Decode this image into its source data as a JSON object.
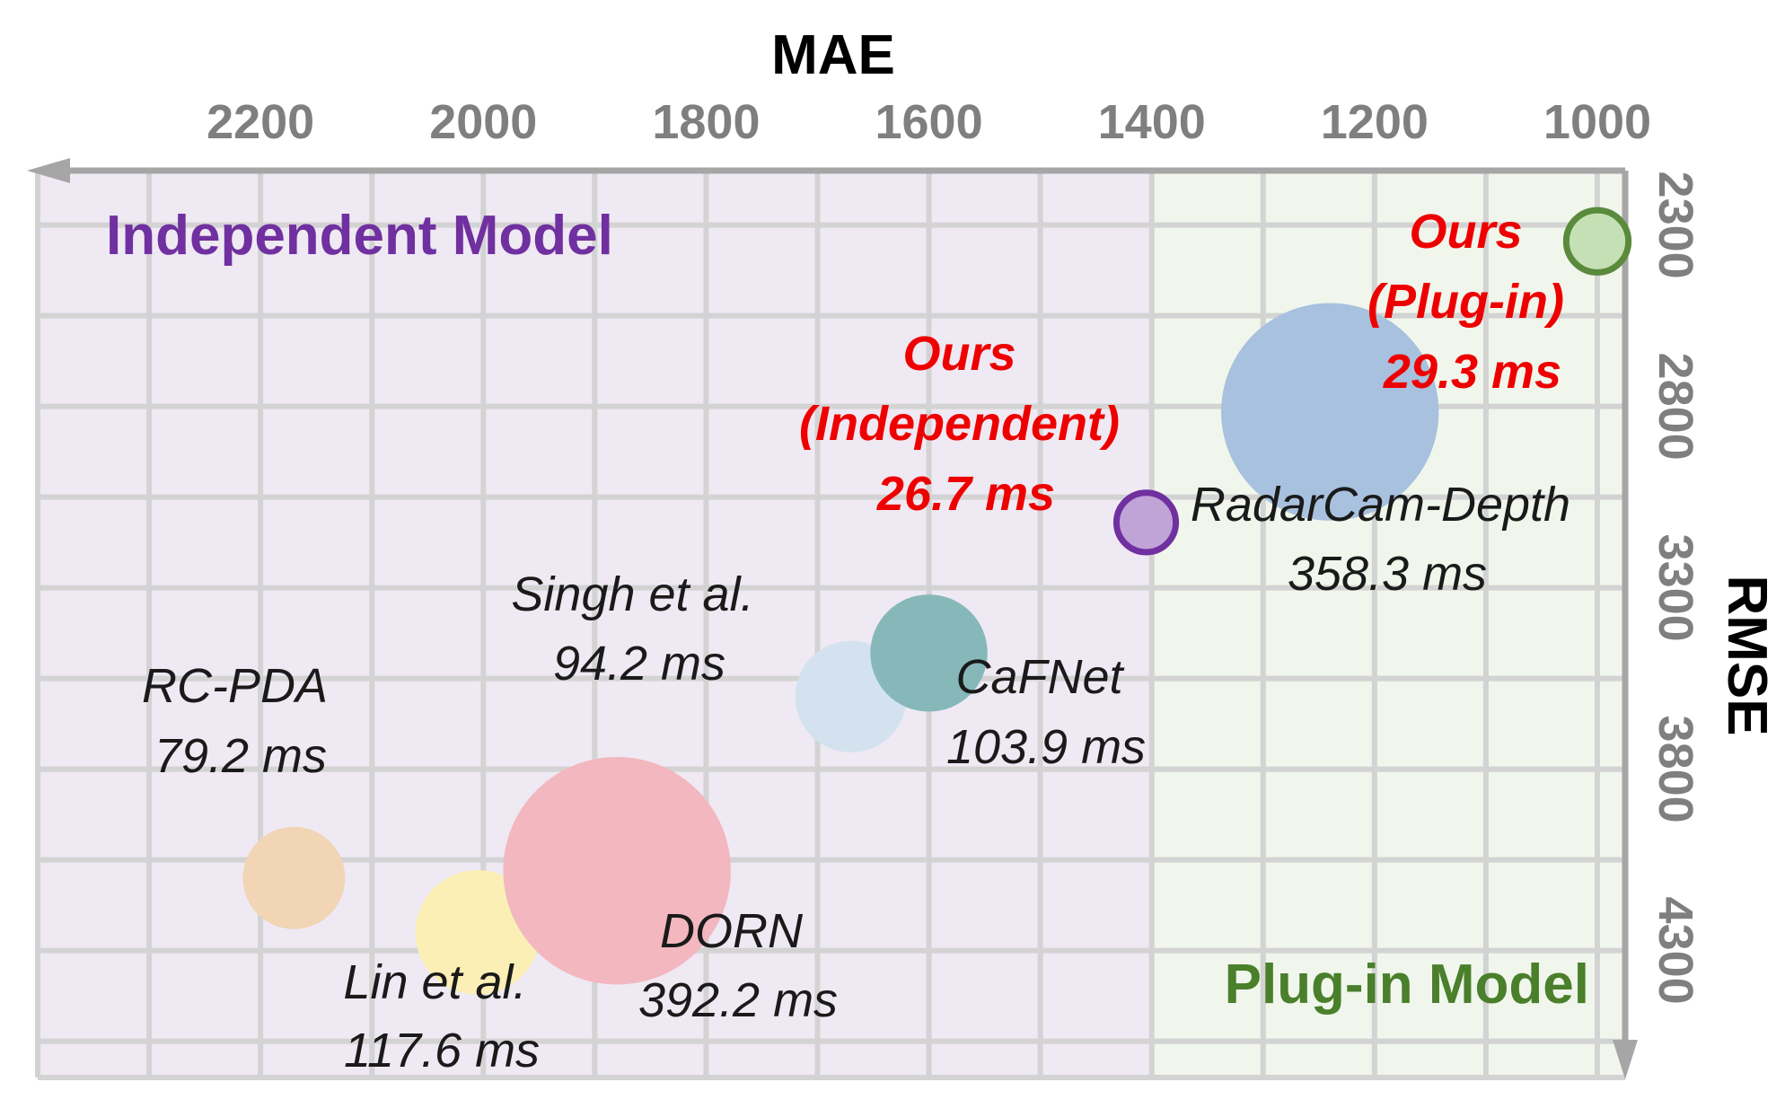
{
  "chart_data": {
    "type": "scatter",
    "subtype": "bubble",
    "xlabel": "MAE",
    "ylabel": "RMSE",
    "x_axis": {
      "position": "top",
      "direction": "reversed",
      "lim": [
        2400,
        975
      ],
      "ticks": [
        "2200",
        "2000",
        "1800",
        "1600",
        "1400",
        "1200",
        "1000"
      ]
    },
    "y_axis": {
      "position": "right",
      "direction": "downward",
      "lim": [
        2150,
        4650
      ],
      "ticks": [
        "2300",
        "2800",
        "3300",
        "3800",
        "4300"
      ]
    },
    "grid": true,
    "regions": [
      {
        "label": "Independent Model",
        "x_range": [
          2400,
          1400
        ],
        "color": "#efe9f3",
        "text_color": "#7030a0"
      },
      {
        "label": "Plug-in Model",
        "x_range": [
          1400,
          975
        ],
        "color": "#f0f6ec",
        "text_color": "#4a7f2b"
      }
    ],
    "points": [
      {
        "name": "RC-PDA",
        "latency": "79.2 ms",
        "x": 2170,
        "y": 4100,
        "latency_ms": 79.2,
        "color": "#f1d5b4"
      },
      {
        "name": "Lin et al.",
        "latency": "117.6 ms",
        "x": 2005,
        "y": 4250,
        "latency_ms": 117.6,
        "color": "#fbefb6"
      },
      {
        "name": "DORN",
        "latency": "392.2 ms",
        "x": 1880,
        "y": 4080,
        "latency_ms": 392.2,
        "color": "#f2b7bf"
      },
      {
        "name": "Singh et al.",
        "latency": "94.2 ms",
        "x": 1670,
        "y": 3600,
        "latency_ms": 94.2,
        "color": "#d4e2f0"
      },
      {
        "name": "CaFNet",
        "latency": "103.9 ms",
        "x": 1600,
        "y": 3480,
        "latency_ms": 103.9,
        "color": "#86b8ba"
      },
      {
        "name": "RadarCam-Depth",
        "latency": "358.3 ms",
        "x": 1240,
        "y": 2815,
        "latency_ms": 358.3,
        "color": "#a7c1de"
      },
      {
        "name": "Ours",
        "variant": "(Independent)",
        "latency": "26.7 ms",
        "x": 1405,
        "y": 3120,
        "latency_ms": 26.7,
        "color": "#c0a4d8",
        "stroke": "#7030a0"
      },
      {
        "name": "Ours",
        "variant": "(Plug-in)",
        "latency": "29.3 ms",
        "x": 1000,
        "y": 2345,
        "latency_ms": 29.3,
        "color": "#c5e0b4",
        "stroke": "#5a8a3c"
      }
    ]
  }
}
